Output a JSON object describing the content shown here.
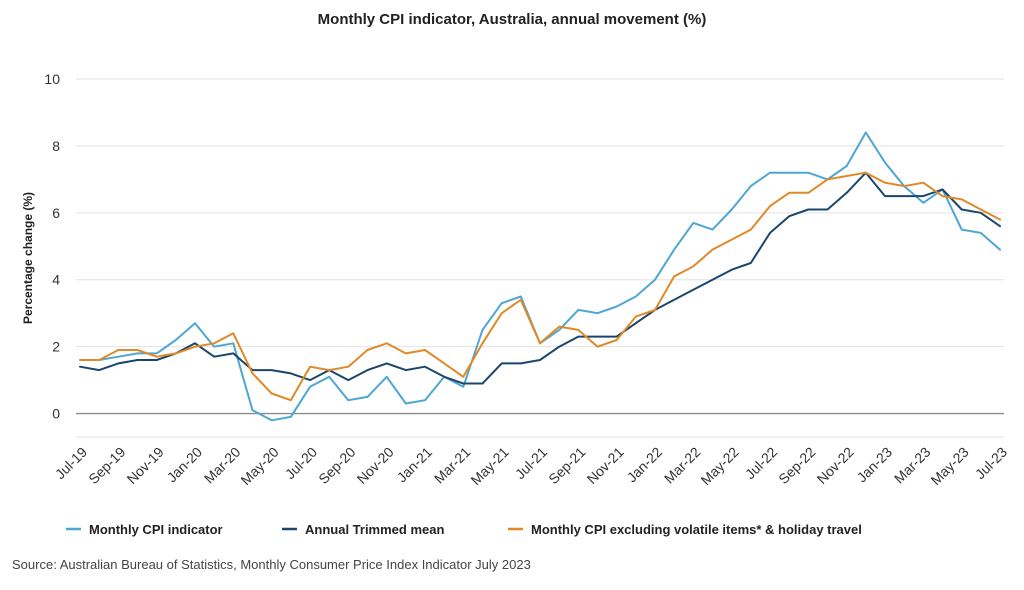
{
  "chart_data": {
    "type": "line",
    "title": "Monthly CPI indicator, Australia, annual movement (%)",
    "ylabel": "Percentage change (%)",
    "xlabel": "",
    "ylim": [
      -0.7,
      10
    ],
    "yticks": [
      0,
      2,
      4,
      6,
      8,
      10
    ],
    "grid": true,
    "legend_position": "bottom",
    "x": [
      "Jul-19",
      "Aug-19",
      "Sep-19",
      "Oct-19",
      "Nov-19",
      "Dec-19",
      "Jan-20",
      "Feb-20",
      "Mar-20",
      "Apr-20",
      "May-20",
      "Jun-20",
      "Jul-20",
      "Aug-20",
      "Sep-20",
      "Oct-20",
      "Nov-20",
      "Dec-20",
      "Jan-21",
      "Feb-21",
      "Mar-21",
      "Apr-21",
      "May-21",
      "Jun-21",
      "Jul-21",
      "Aug-21",
      "Sep-21",
      "Oct-21",
      "Nov-21",
      "Dec-21",
      "Jan-22",
      "Feb-22",
      "Mar-22",
      "Apr-22",
      "May-22",
      "Jun-22",
      "Jul-22",
      "Aug-22",
      "Sep-22",
      "Oct-22",
      "Nov-22",
      "Dec-22",
      "Jan-23",
      "Feb-23",
      "Mar-23",
      "Apr-23",
      "May-23",
      "Jun-23",
      "Jul-23"
    ],
    "x_tick_labels": [
      "Jul-19",
      "Sep-19",
      "Nov-19",
      "Jan-20",
      "Mar-20",
      "May-20",
      "Jul-20",
      "Sep-20",
      "Nov-20",
      "Jan-21",
      "Mar-21",
      "May-21",
      "Jul-21",
      "Sep-21",
      "Nov-21",
      "Jan-22",
      "Mar-22",
      "May-22",
      "Jul-22",
      "Sep-22",
      "Nov-22",
      "Jan-23",
      "Mar-23",
      "May-23",
      "Jul-23"
    ],
    "series": [
      {
        "name": "Monthly CPI indicator",
        "color": "#4ea6d3",
        "values": [
          1.6,
          1.6,
          1.7,
          1.8,
          1.8,
          2.2,
          2.7,
          2.0,
          2.1,
          0.1,
          -0.2,
          -0.1,
          0.8,
          1.1,
          0.4,
          0.5,
          1.1,
          0.3,
          0.4,
          1.1,
          0.8,
          2.5,
          3.3,
          3.5,
          2.1,
          2.5,
          3.1,
          3.0,
          3.2,
          3.5,
          4.0,
          4.9,
          5.7,
          5.5,
          6.1,
          6.8,
          7.2,
          7.2,
          7.2,
          7.0,
          7.4,
          8.4,
          7.5,
          6.8,
          6.3,
          6.7,
          5.5,
          5.4,
          4.9
        ]
      },
      {
        "name": "Annual Trimmed mean",
        "color": "#1b466b",
        "values": [
          1.4,
          1.3,
          1.5,
          1.6,
          1.6,
          1.8,
          2.1,
          1.7,
          1.8,
          1.3,
          1.3,
          1.2,
          1.0,
          1.3,
          1.0,
          1.3,
          1.5,
          1.3,
          1.4,
          1.1,
          0.9,
          0.9,
          1.5,
          1.5,
          1.6,
          2.0,
          2.3,
          2.3,
          2.3,
          2.7,
          3.1,
          3.4,
          3.7,
          4.0,
          4.3,
          4.5,
          5.4,
          5.9,
          6.1,
          6.1,
          6.6,
          7.2,
          6.5,
          6.5,
          6.5,
          6.7,
          6.1,
          6.0,
          5.6
        ]
      },
      {
        "name": "Monthly CPI excluding volatile items* & holiday travel",
        "color": "#df8a27",
        "values": [
          1.6,
          1.6,
          1.9,
          1.9,
          1.7,
          1.8,
          2.0,
          2.1,
          2.4,
          1.2,
          0.6,
          0.4,
          1.4,
          1.3,
          1.4,
          1.9,
          2.1,
          1.8,
          1.9,
          1.5,
          1.1,
          2.1,
          3.0,
          3.4,
          2.1,
          2.6,
          2.5,
          2.0,
          2.2,
          2.9,
          3.1,
          4.1,
          4.4,
          4.9,
          5.2,
          5.5,
          6.2,
          6.6,
          6.6,
          7.0,
          7.1,
          7.2,
          6.9,
          6.8,
          6.9,
          6.5,
          6.4,
          6.1,
          5.8
        ]
      }
    ]
  },
  "source": "Source: Australian Bureau of Statistics, Monthly Consumer Price Index Indicator July 2023"
}
